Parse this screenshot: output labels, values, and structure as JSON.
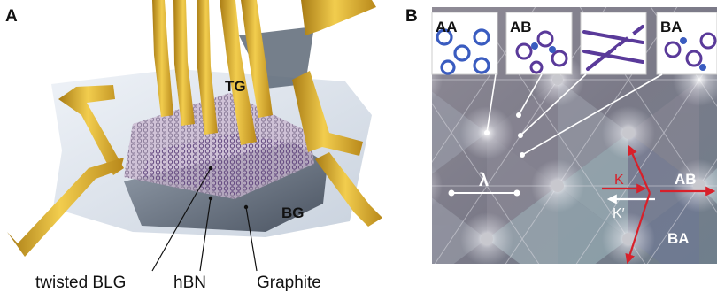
{
  "panel_a": {
    "letter": "A",
    "labels": {
      "tg": "TG",
      "bg": "BG",
      "twisted_blg": "twisted BLG",
      "hbn": "hBN",
      "graphite": "Graphite"
    }
  },
  "panel_b": {
    "letter": "B",
    "insets": [
      "AA",
      "AB",
      "",
      "BA"
    ],
    "lambda": "λ",
    "k": "K",
    "k_prime": "K′",
    "region_ab": "AB",
    "region_ba": "BA"
  },
  "colors": {
    "gold": "#d8a626",
    "gold_dark": "#9a7312",
    "moire_bg": "#7e7a86",
    "arrow_red": "#d8202a",
    "inset_purple": "#5a3a9a",
    "inset_blue": "#3a5cc0"
  }
}
